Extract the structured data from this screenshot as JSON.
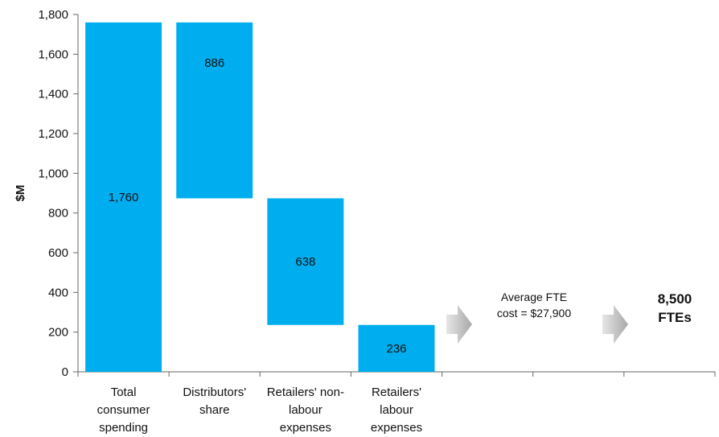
{
  "chart_data": {
    "type": "bar",
    "subtype": "waterfall",
    "ylabel": "$M",
    "ylim": [
      0,
      1800
    ],
    "yticks": [
      "0",
      "200",
      "400",
      "600",
      "800",
      "1,000",
      "1,200",
      "1,400",
      "1,600",
      "1,800"
    ],
    "ytick_values": [
      0,
      200,
      400,
      600,
      800,
      1000,
      1200,
      1400,
      1600,
      1800
    ],
    "categories": [
      [
        "Total",
        "consumer",
        "spending"
      ],
      [
        "Distributors'",
        "share"
      ],
      [
        "Retailers' non-",
        "labour",
        "expenses"
      ],
      [
        "Retailers'",
        "labour",
        "expenses"
      ]
    ],
    "bars": [
      {
        "bottom": 0,
        "top": 1760,
        "value": 1760,
        "label": "1,760"
      },
      {
        "bottom": 874,
        "top": 1760,
        "value": 886,
        "label": "886"
      },
      {
        "bottom": 236,
        "top": 874,
        "value": 638,
        "label": "638"
      },
      {
        "bottom": 0,
        "top": 236,
        "value": 236,
        "label": "236"
      }
    ],
    "bar_color": "#00AEEF",
    "annotation": [
      "Average FTE",
      "cost = $27,900"
    ],
    "result": [
      "8,500",
      "FTEs"
    ],
    "arrow_color": "#b3b3b3",
    "grid": false
  }
}
